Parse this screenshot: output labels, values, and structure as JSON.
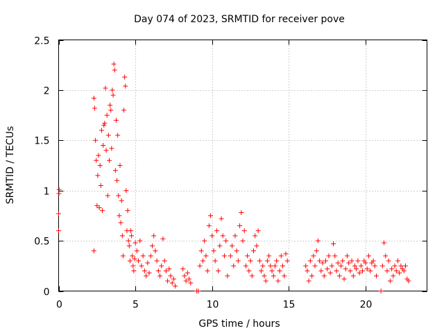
{
  "chart_data": {
    "type": "scatter",
    "title": "Day 074 of 2023, SRMTID for receiver pove",
    "xlabel": "GPS time / hours",
    "ylabel": "SRMTID / TECUs",
    "xlim": [
      0,
      24
    ],
    "ylim": [
      0,
      2.5
    ],
    "xticks": [
      0,
      5,
      10,
      15,
      20
    ],
    "yticks": [
      0,
      0.5,
      1,
      1.5,
      2,
      2.5
    ],
    "xtick_labels": [
      "0",
      "5",
      "10",
      "15",
      "20"
    ],
    "ytick_labels": [
      "0",
      "0.5",
      "1",
      "1.5",
      "2",
      "2.5"
    ],
    "grid": true,
    "marker": "+",
    "series": [
      {
        "name": "SRMTID",
        "color": "#ff0000",
        "points": [
          [
            0.0,
            0.6
          ],
          [
            0.0,
            0.77
          ],
          [
            0.02,
            0.97
          ],
          [
            0.03,
            1.01
          ],
          [
            2.3,
            0.4
          ],
          [
            2.3,
            1.92
          ],
          [
            2.35,
            1.82
          ],
          [
            2.4,
            1.5
          ],
          [
            2.45,
            1.3
          ],
          [
            2.5,
            0.85
          ],
          [
            2.55,
            1.15
          ],
          [
            2.6,
            1.35
          ],
          [
            2.65,
            0.83
          ],
          [
            2.7,
            1.25
          ],
          [
            2.75,
            1.05
          ],
          [
            2.8,
            1.6
          ],
          [
            2.85,
            0.8
          ],
          [
            2.9,
            1.45
          ],
          [
            2.95,
            1.65
          ],
          [
            3.0,
            1.67
          ],
          [
            3.05,
            2.02
          ],
          [
            3.1,
            1.4
          ],
          [
            3.15,
            1.75
          ],
          [
            3.2,
            0.95
          ],
          [
            3.25,
            1.55
          ],
          [
            3.3,
            1.3
          ],
          [
            3.35,
            1.85
          ],
          [
            3.4,
            1.8
          ],
          [
            3.45,
            1.42
          ],
          [
            3.5,
            2.0
          ],
          [
            3.55,
            1.95
          ],
          [
            3.6,
            2.26
          ],
          [
            3.65,
            2.2
          ],
          [
            3.7,
            1.2
          ],
          [
            3.75,
            1.7
          ],
          [
            3.8,
            1.1
          ],
          [
            3.85,
            1.55
          ],
          [
            3.9,
            0.95
          ],
          [
            3.95,
            0.75
          ],
          [
            4.0,
            1.25
          ],
          [
            4.05,
            0.68
          ],
          [
            4.1,
            0.9
          ],
          [
            4.15,
            0.55
          ],
          [
            4.2,
            0.35
          ],
          [
            4.25,
            1.8
          ],
          [
            4.3,
            2.13
          ],
          [
            4.35,
            2.04
          ],
          [
            4.4,
            1.0
          ],
          [
            4.45,
            0.6
          ],
          [
            4.5,
            0.8
          ],
          [
            4.55,
            0.5
          ],
          [
            4.6,
            0.45
          ],
          [
            4.65,
            0.3
          ],
          [
            4.7,
            0.6
          ],
          [
            4.75,
            0.55
          ],
          [
            4.8,
            0.35
          ],
          [
            4.85,
            0.25
          ],
          [
            4.9,
            0.2
          ],
          [
            4.95,
            0.32
          ],
          [
            5.0,
            0.48
          ],
          [
            5.1,
            0.4
          ],
          [
            5.2,
            0.3
          ],
          [
            5.3,
            0.5
          ],
          [
            5.4,
            0.25
          ],
          [
            5.5,
            0.35
          ],
          [
            5.6,
            0.2
          ],
          [
            5.7,
            0.15
          ],
          [
            5.8,
            0.28
          ],
          [
            5.9,
            0.18
          ],
          [
            6.0,
            0.35
          ],
          [
            6.1,
            0.45
          ],
          [
            6.2,
            0.55
          ],
          [
            6.3,
            0.4
          ],
          [
            6.4,
            0.3
          ],
          [
            6.5,
            0.2
          ],
          [
            6.6,
            0.15
          ],
          [
            6.7,
            0.25
          ],
          [
            6.8,
            0.52
          ],
          [
            6.9,
            0.3
          ],
          [
            7.0,
            0.2
          ],
          [
            7.1,
            0.1
          ],
          [
            7.2,
            0.22
          ],
          [
            7.3,
            0.15
          ],
          [
            7.4,
            0.08
          ],
          [
            7.5,
            0.12
          ],
          [
            7.6,
            0.05
          ],
          [
            8.1,
            0.22
          ],
          [
            8.2,
            0.15
          ],
          [
            8.3,
            0.1
          ],
          [
            8.4,
            0.18
          ],
          [
            8.5,
            0.12
          ],
          [
            8.6,
            0.08
          ],
          [
            9.0,
            0.0
          ],
          [
            9.1,
            0.0
          ],
          [
            9.2,
            0.25
          ],
          [
            9.3,
            0.4
          ],
          [
            9.4,
            0.3
          ],
          [
            9.5,
            0.5
          ],
          [
            9.6,
            0.35
          ],
          [
            9.7,
            0.2
          ],
          [
            9.8,
            0.65
          ],
          [
            9.9,
            0.75
          ],
          [
            10.0,
            0.55
          ],
          [
            10.1,
            0.4
          ],
          [
            10.2,
            0.3
          ],
          [
            10.3,
            0.6
          ],
          [
            10.4,
            0.2
          ],
          [
            10.5,
            0.45
          ],
          [
            10.6,
            0.72
          ],
          [
            10.7,
            0.55
          ],
          [
            10.8,
            0.35
          ],
          [
            10.9,
            0.5
          ],
          [
            11.0,
            0.15
          ],
          [
            11.2,
            0.35
          ],
          [
            11.3,
            0.45
          ],
          [
            11.4,
            0.25
          ],
          [
            11.5,
            0.55
          ],
          [
            11.6,
            0.4
          ],
          [
            11.7,
            0.3
          ],
          [
            11.8,
            0.65
          ],
          [
            11.9,
            0.78
          ],
          [
            12.0,
            0.5
          ],
          [
            12.1,
            0.6
          ],
          [
            12.2,
            0.25
          ],
          [
            12.3,
            0.35
          ],
          [
            12.4,
            0.2
          ],
          [
            12.5,
            0.3
          ],
          [
            12.6,
            0.15
          ],
          [
            12.7,
            0.4
          ],
          [
            12.8,
            0.55
          ],
          [
            12.9,
            0.45
          ],
          [
            13.0,
            0.6
          ],
          [
            13.1,
            0.3
          ],
          [
            13.2,
            0.2
          ],
          [
            13.3,
            0.25
          ],
          [
            13.4,
            0.15
          ],
          [
            13.5,
            0.1
          ],
          [
            13.6,
            0.3
          ],
          [
            13.7,
            0.35
          ],
          [
            13.8,
            0.25
          ],
          [
            13.9,
            0.2
          ],
          [
            14.0,
            0.15
          ],
          [
            14.1,
            0.25
          ],
          [
            14.2,
            0.3
          ],
          [
            14.3,
            0.1
          ],
          [
            14.4,
            0.2
          ],
          [
            14.5,
            0.35
          ],
          [
            14.6,
            0.25
          ],
          [
            14.7,
            0.15
          ],
          [
            14.8,
            0.37
          ],
          [
            14.9,
            0.3
          ],
          [
            16.1,
            0.25
          ],
          [
            16.2,
            0.2
          ],
          [
            16.3,
            0.1
          ],
          [
            16.4,
            0.3
          ],
          [
            16.5,
            0.15
          ],
          [
            16.6,
            0.35
          ],
          [
            16.7,
            0.25
          ],
          [
            16.8,
            0.4
          ],
          [
            16.9,
            0.5
          ],
          [
            17.0,
            0.3
          ],
          [
            17.1,
            0.2
          ],
          [
            17.2,
            0.28
          ],
          [
            17.3,
            0.15
          ],
          [
            17.4,
            0.3
          ],
          [
            17.5,
            0.22
          ],
          [
            17.6,
            0.35
          ],
          [
            17.7,
            0.18
          ],
          [
            17.8,
            0.25
          ],
          [
            17.9,
            0.47
          ],
          [
            18.0,
            0.35
          ],
          [
            18.1,
            0.2
          ],
          [
            18.2,
            0.28
          ],
          [
            18.3,
            0.15
          ],
          [
            18.4,
            0.25
          ],
          [
            18.5,
            0.3
          ],
          [
            18.6,
            0.12
          ],
          [
            18.7,
            0.22
          ],
          [
            18.8,
            0.35
          ],
          [
            18.9,
            0.28
          ],
          [
            19.0,
            0.2
          ],
          [
            19.1,
            0.3
          ],
          [
            19.2,
            0.15
          ],
          [
            19.3,
            0.25
          ],
          [
            19.4,
            0.22
          ],
          [
            19.5,
            0.3
          ],
          [
            19.6,
            0.18
          ],
          [
            19.7,
            0.25
          ],
          [
            19.8,
            0.2
          ],
          [
            19.9,
            0.3
          ],
          [
            20.0,
            0.28
          ],
          [
            20.1,
            0.22
          ],
          [
            20.2,
            0.35
          ],
          [
            20.3,
            0.2
          ],
          [
            20.4,
            0.28
          ],
          [
            20.5,
            0.3
          ],
          [
            20.6,
            0.25
          ],
          [
            20.7,
            0.15
          ],
          [
            21.0,
            0.0
          ],
          [
            21.1,
            0.25
          ],
          [
            21.2,
            0.48
          ],
          [
            21.3,
            0.35
          ],
          [
            21.4,
            0.2
          ],
          [
            21.5,
            0.3
          ],
          [
            21.6,
            0.1
          ],
          [
            21.7,
            0.22
          ],
          [
            21.8,
            0.15
          ],
          [
            21.9,
            0.25
          ],
          [
            22.0,
            0.2
          ],
          [
            22.1,
            0.3
          ],
          [
            22.2,
            0.18
          ],
          [
            22.3,
            0.25
          ],
          [
            22.4,
            0.22
          ],
          [
            22.5,
            0.2
          ],
          [
            22.6,
            0.25
          ],
          [
            22.7,
            0.12
          ],
          [
            22.8,
            0.1
          ]
        ]
      }
    ]
  }
}
